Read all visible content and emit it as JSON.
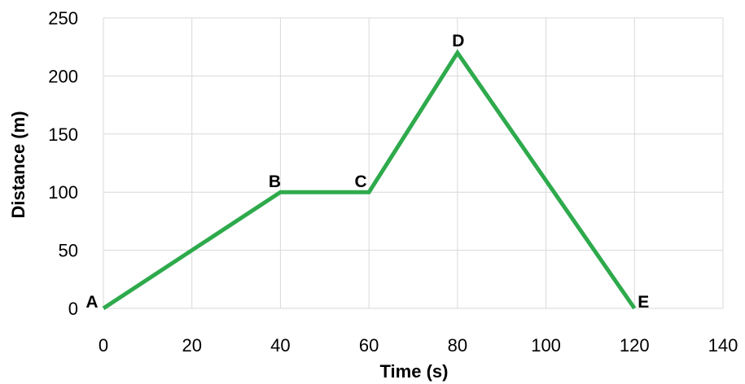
{
  "chart_data": {
    "type": "line",
    "xlabel": "Time (s)",
    "ylabel": "Distance (m)",
    "xlim": [
      0,
      140
    ],
    "ylim": [
      0,
      250
    ],
    "x_ticks": [
      0,
      20,
      40,
      60,
      80,
      100,
      120,
      140
    ],
    "y_ticks": [
      0,
      50,
      100,
      150,
      200,
      250
    ],
    "grid": true,
    "series": [
      {
        "color": "#2eaa4c",
        "x": [
          0,
          40,
          60,
          80,
          120
        ],
        "y": [
          0,
          100,
          100,
          220,
          0
        ],
        "point_labels": [
          "A",
          "B",
          "C",
          "D",
          "E"
        ]
      }
    ]
  }
}
